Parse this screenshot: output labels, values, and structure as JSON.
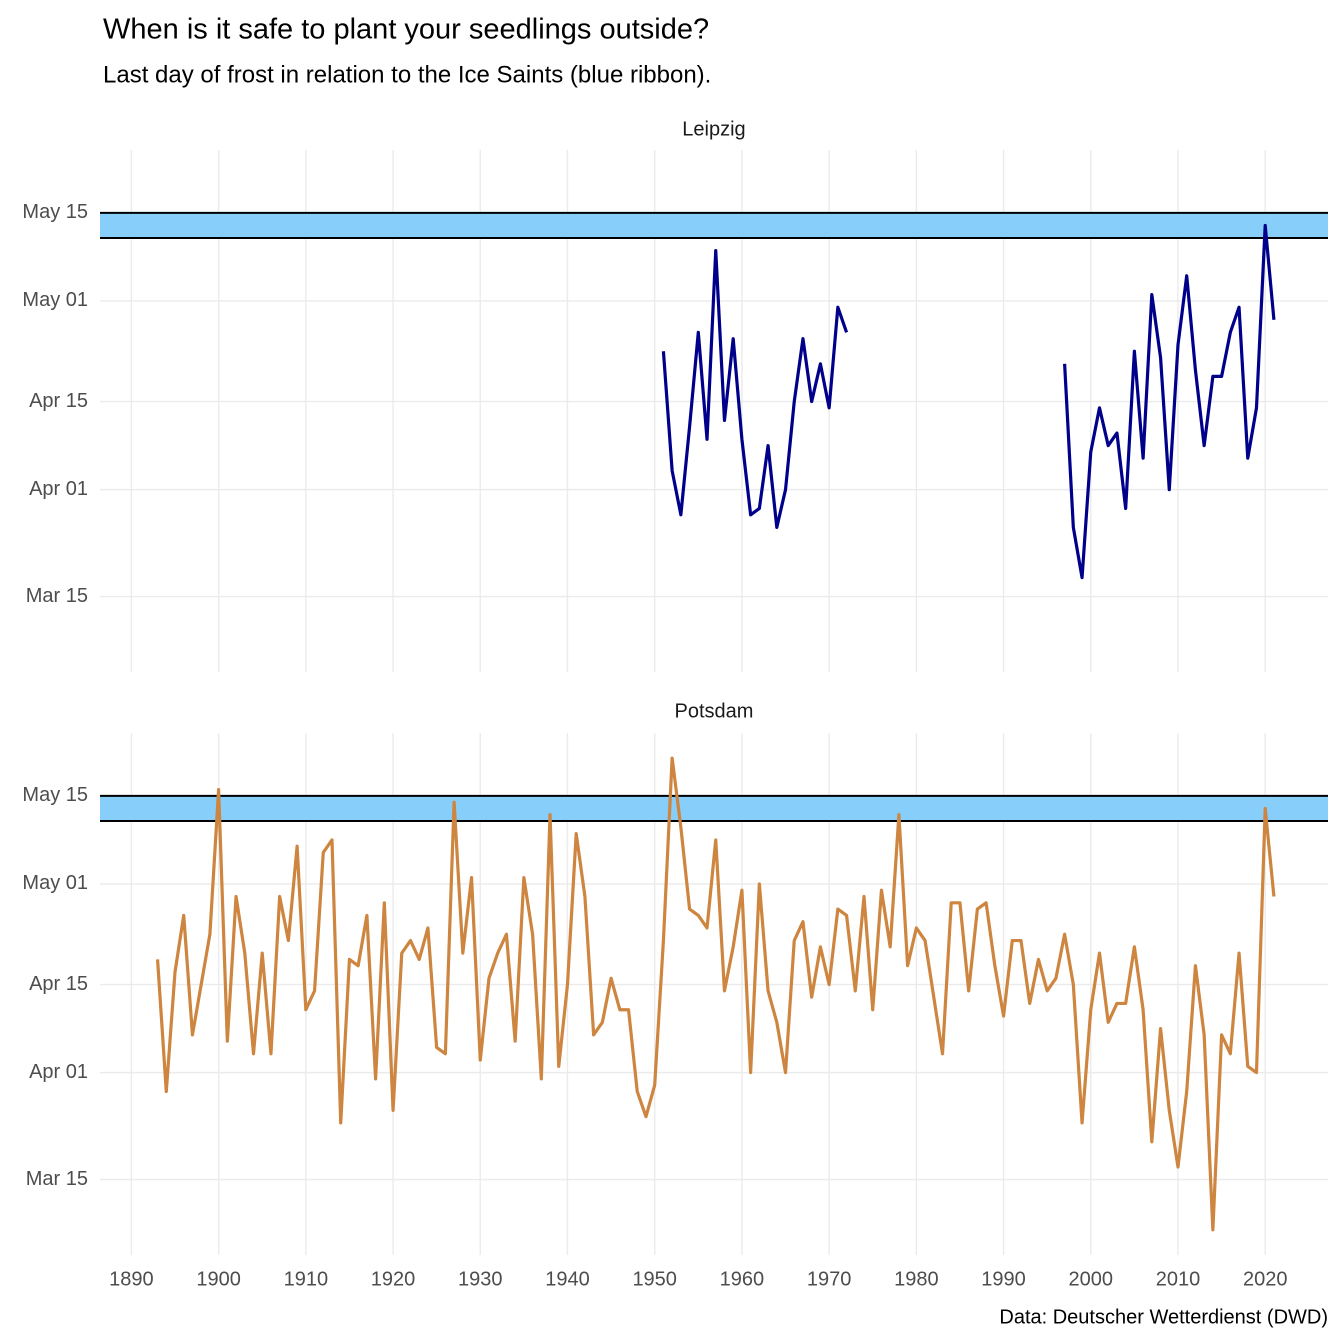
{
  "title": "When is it safe to plant your seedlings outside?",
  "subtitle": "Last day of frost in relation to the Ice Saints (blue ribbon).",
  "caption": "Data: Deutscher Wetterdienst (DWD)",
  "chart_data": [
    {
      "type": "line",
      "title": "Leipzig",
      "color": "#00008b",
      "show_xtick_labels": false,
      "grid": true,
      "ribbon": {
        "ymin": 131,
        "ymax": 135,
        "color": "#87cefa"
      },
      "xlim": [
        1886.4,
        2027.2
      ],
      "xticks": [
        1890,
        1900,
        1910,
        1920,
        1930,
        1940,
        1950,
        1960,
        1970,
        1980,
        1990,
        2000,
        2010,
        2020
      ],
      "ylim": [
        62,
        145
      ],
      "yticks": [
        {
          "value": 74,
          "label": "Mar 15"
        },
        {
          "value": 91,
          "label": "Apr 01"
        },
        {
          "value": 105,
          "label": "Apr 15"
        },
        {
          "value": 121,
          "label": "May 01"
        },
        {
          "value": 135,
          "label": "May 15"
        }
      ],
      "x": [
        1951,
        1952,
        1953,
        1954,
        1955,
        1956,
        1957,
        1958,
        1959,
        1960,
        1961,
        1962,
        1963,
        1964,
        1965,
        1966,
        1967,
        1968,
        1969,
        1970,
        1971,
        1972,
        1973,
        1974,
        1975,
        1976,
        1977,
        1978,
        1979,
        1980,
        1981,
        1982,
        1983,
        1984,
        1985,
        1986,
        1987,
        1988,
        1989,
        1990,
        1991,
        1992,
        1993,
        1994,
        1995,
        1996,
        1997,
        1998,
        1999,
        2000,
        2001,
        2002,
        2003,
        2004,
        2005,
        2006,
        2007,
        2008,
        2009,
        2010,
        2011,
        2012,
        2013,
        2014,
        2015,
        2016,
        2017,
        2018,
        2019,
        2020,
        2021
      ],
      "values": [
        113,
        94,
        87,
        101,
        116,
        99,
        129,
        102,
        115,
        99,
        87,
        88,
        98,
        85,
        91,
        105,
        115,
        105,
        111,
        104,
        120,
        116,
        null,
        null,
        null,
        null,
        null,
        null,
        null,
        null,
        null,
        null,
        null,
        null,
        null,
        null,
        null,
        null,
        null,
        null,
        null,
        null,
        null,
        null,
        null,
        null,
        111,
        85,
        77,
        97,
        104,
        98,
        100,
        88,
        113,
        96,
        122,
        112,
        91,
        114,
        125,
        110,
        98,
        109,
        109,
        116,
        120,
        96,
        104,
        133,
        118
      ]
    },
    {
      "type": "line",
      "title": "Potsdam",
      "color": "#cd853f",
      "show_xtick_labels": true,
      "grid": true,
      "ribbon": {
        "ymin": 131,
        "ymax": 135,
        "color": "#87cefa"
      },
      "xlim": [
        1886.4,
        2027.2
      ],
      "xticks": [
        1890,
        1900,
        1910,
        1920,
        1930,
        1940,
        1950,
        1960,
        1970,
        1980,
        1990,
        2000,
        2010,
        2020
      ],
      "ylim": [
        62,
        145
      ],
      "yticks": [
        {
          "value": 74,
          "label": "Mar 15"
        },
        {
          "value": 91,
          "label": "Apr 01"
        },
        {
          "value": 105,
          "label": "Apr 15"
        },
        {
          "value": 121,
          "label": "May 01"
        },
        {
          "value": 135,
          "label": "May 15"
        }
      ],
      "x": [
        1893,
        1894,
        1895,
        1896,
        1897,
        1898,
        1899,
        1900,
        1901,
        1902,
        1903,
        1904,
        1905,
        1906,
        1907,
        1908,
        1909,
        1910,
        1911,
        1912,
        1913,
        1914,
        1915,
        1916,
        1917,
        1918,
        1919,
        1920,
        1921,
        1922,
        1923,
        1924,
        1925,
        1926,
        1927,
        1928,
        1929,
        1930,
        1931,
        1932,
        1933,
        1934,
        1935,
        1936,
        1937,
        1938,
        1939,
        1940,
        1941,
        1942,
        1943,
        1944,
        1945,
        1946,
        1947,
        1948,
        1949,
        1950,
        1951,
        1952,
        1953,
        1954,
        1955,
        1956,
        1957,
        1958,
        1959,
        1960,
        1961,
        1962,
        1963,
        1964,
        1965,
        1966,
        1967,
        1968,
        1969,
        1970,
        1971,
        1972,
        1973,
        1974,
        1975,
        1976,
        1977,
        1978,
        1979,
        1980,
        1981,
        1982,
        1983,
        1984,
        1985,
        1986,
        1987,
        1988,
        1989,
        1990,
        1991,
        1992,
        1993,
        1994,
        1995,
        1996,
        1997,
        1998,
        1999,
        2000,
        2001,
        2002,
        2003,
        2004,
        2005,
        2006,
        2007,
        2008,
        2009,
        2010,
        2011,
        2012,
        2013,
        2014,
        2015,
        2016,
        2017,
        2018,
        2019,
        2020,
        2021
      ],
      "values": [
        109,
        88,
        107,
        116,
        97,
        105,
        113,
        136,
        96,
        119,
        110,
        94,
        110,
        94,
        119,
        112,
        127,
        101,
        104,
        126,
        128,
        83,
        109,
        108,
        116,
        90,
        118,
        85,
        110,
        112,
        109,
        114,
        95,
        94,
        134,
        110,
        122,
        93,
        106,
        110,
        113,
        96,
        122,
        113,
        90,
        132,
        92,
        105,
        129,
        119,
        97,
        99,
        106,
        101,
        101,
        88,
        84,
        89,
        112,
        141,
        130,
        117,
        116,
        114,
        128,
        104,
        111,
        120,
        91,
        121,
        104,
        99,
        91,
        112,
        115,
        103,
        111,
        105,
        117,
        116,
        104,
        119,
        101,
        120,
        111,
        132,
        108,
        114,
        112,
        103,
        94,
        118,
        118,
        104,
        117,
        118,
        108,
        100,
        112,
        112,
        102,
        109,
        104,
        106,
        113,
        105,
        83,
        101,
        110,
        99,
        102,
        102,
        111,
        101,
        80,
        98,
        85,
        76,
        88,
        108,
        97,
        66,
        97,
        94,
        110,
        92,
        91,
        133,
        119
      ]
    }
  ]
}
